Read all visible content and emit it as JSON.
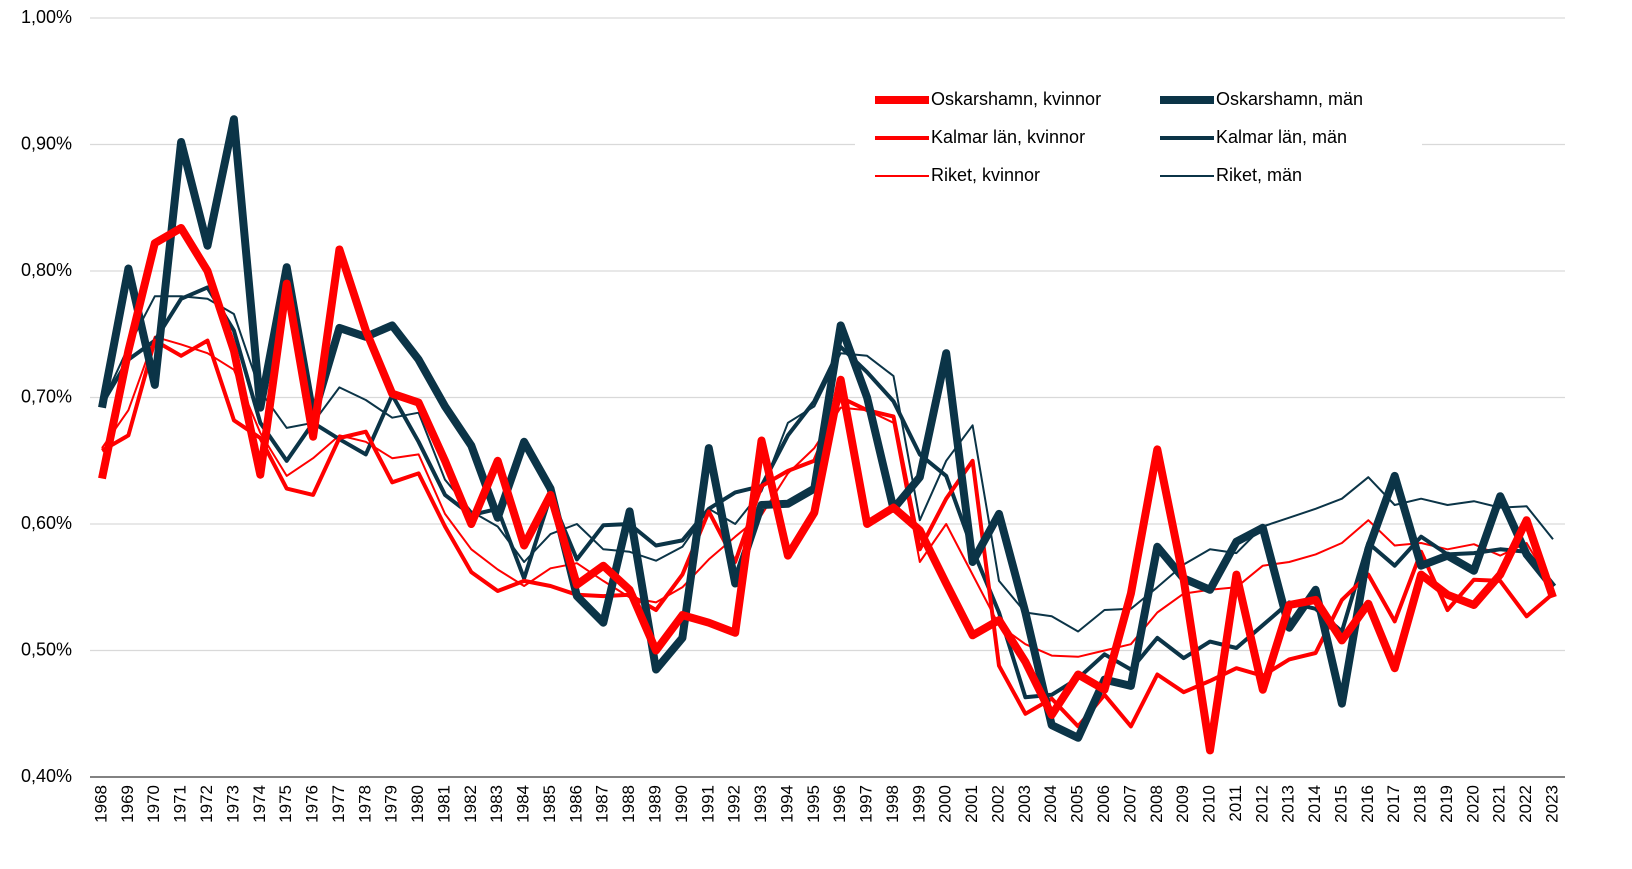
{
  "chart_data": {
    "type": "line",
    "categories": [
      "1968",
      "1969",
      "1970",
      "1971",
      "1972",
      "1973",
      "1974",
      "1975",
      "1976",
      "1977",
      "1978",
      "1979",
      "1980",
      "1981",
      "1982",
      "1983",
      "1984",
      "1985",
      "1986",
      "1987",
      "1988",
      "1989",
      "1990",
      "1991",
      "1992",
      "1993",
      "1994",
      "1995",
      "1996",
      "1997",
      "1998",
      "1999",
      "2000",
      "2001",
      "2002",
      "2003",
      "2004",
      "2005",
      "2006",
      "2007",
      "2008",
      "2009",
      "2010",
      "2011",
      "2012",
      "2013",
      "2014",
      "2015",
      "2016",
      "2017",
      "2018",
      "2019",
      "2020",
      "2021",
      "2022",
      "2023"
    ],
    "ylim": [
      0.4,
      1.0
    ],
    "yticks": [
      {
        "value": 0.4,
        "label": "0,40%"
      },
      {
        "value": 0.5,
        "label": "0,50%"
      },
      {
        "value": 0.6,
        "label": "0,60%"
      },
      {
        "value": 0.7,
        "label": "0,70%"
      },
      {
        "value": 0.8,
        "label": "0,80%"
      },
      {
        "value": 0.9,
        "label": "0,90%"
      },
      {
        "value": 1.0,
        "label": "1,00%"
      }
    ],
    "grid": true,
    "legend": "top-right",
    "series": [
      {
        "name": "Oskarshamn, kvinnor",
        "color": "#ff0000",
        "width": 8,
        "values": [
          0.636,
          0.737,
          0.822,
          0.834,
          0.8,
          0.737,
          0.639,
          0.79,
          0.669,
          0.817,
          0.753,
          0.703,
          0.696,
          0.65,
          0.6,
          0.65,
          0.583,
          0.623,
          0.552,
          0.567,
          0.548,
          0.5,
          0.528,
          0.522,
          0.514,
          0.666,
          0.575,
          0.609,
          0.714,
          0.6,
          0.613,
          0.595,
          0.553,
          0.512,
          0.524,
          0.491,
          0.449,
          0.481,
          0.469,
          0.545,
          0.659,
          0.556,
          0.421,
          0.56,
          0.469,
          0.536,
          0.54,
          0.508,
          0.537,
          0.486,
          0.56,
          0.544,
          0.536,
          0.56,
          0.603,
          0.542
        ]
      },
      {
        "name": "Oskarshamn, män",
        "color": "#0b3447",
        "width": 8,
        "values": [
          0.692,
          0.802,
          0.71,
          0.902,
          0.82,
          0.92,
          0.692,
          0.803,
          0.685,
          0.755,
          0.748,
          0.757,
          0.73,
          0.693,
          0.662,
          0.605,
          0.665,
          0.628,
          0.543,
          0.522,
          0.61,
          0.485,
          0.51,
          0.66,
          0.553,
          0.615,
          0.616,
          0.628,
          0.757,
          0.7,
          0.612,
          0.637,
          0.735,
          0.57,
          0.608,
          0.53,
          0.441,
          0.431,
          0.477,
          0.472,
          0.582,
          0.557,
          0.548,
          0.586,
          0.597,
          0.518,
          0.548,
          0.458,
          0.58,
          0.638,
          0.567,
          0.575,
          0.563,
          0.622,
          0.576,
          0.55
        ]
      },
      {
        "name": "Kalmar län, kvinnor",
        "color": "#ff0000",
        "width": 4,
        "values": [
          0.658,
          0.67,
          0.745,
          0.733,
          0.745,
          0.682,
          0.668,
          0.628,
          0.623,
          0.668,
          0.673,
          0.633,
          0.64,
          0.598,
          0.562,
          0.547,
          0.555,
          0.551,
          0.544,
          0.543,
          0.544,
          0.532,
          0.56,
          0.61,
          0.57,
          0.63,
          0.642,
          0.65,
          0.7,
          0.69,
          0.685,
          0.58,
          0.62,
          0.65,
          0.488,
          0.45,
          0.462,
          0.44,
          0.465,
          0.44,
          0.481,
          0.467,
          0.476,
          0.486,
          0.48,
          0.493,
          0.498,
          0.54,
          0.56,
          0.523,
          0.578,
          0.532,
          0.556,
          0.555,
          0.527,
          0.545
        ]
      },
      {
        "name": "Kalmar län, män",
        "color": "#0b3447",
        "width": 4,
        "values": [
          0.695,
          0.73,
          0.745,
          0.778,
          0.787,
          0.753,
          0.68,
          0.65,
          0.68,
          0.667,
          0.655,
          0.702,
          0.665,
          0.623,
          0.607,
          0.612,
          0.557,
          0.622,
          0.572,
          0.599,
          0.6,
          0.583,
          0.587,
          0.612,
          0.625,
          0.63,
          0.67,
          0.697,
          0.74,
          0.72,
          0.697,
          0.655,
          0.638,
          0.58,
          0.53,
          0.463,
          0.465,
          0.478,
          0.497,
          0.485,
          0.51,
          0.494,
          0.507,
          0.502,
          0.52,
          0.538,
          0.533,
          0.515,
          0.585,
          0.567,
          0.59,
          0.576,
          0.577,
          0.58,
          0.578,
          0.552
        ]
      },
      {
        "name": "Riket, kvinnor",
        "color": "#ff0000",
        "width": 2,
        "values": [
          0.66,
          0.69,
          0.748,
          0.742,
          0.735,
          0.722,
          0.672,
          0.638,
          0.652,
          0.67,
          0.665,
          0.652,
          0.655,
          0.608,
          0.58,
          0.564,
          0.551,
          0.565,
          0.569,
          0.555,
          0.542,
          0.538,
          0.55,
          0.572,
          0.59,
          0.607,
          0.64,
          0.66,
          0.692,
          0.69,
          0.68,
          0.57,
          0.6,
          0.56,
          0.52,
          0.505,
          0.496,
          0.495,
          0.5,
          0.505,
          0.53,
          0.545,
          0.548,
          0.55,
          0.567,
          0.57,
          0.576,
          0.585,
          0.603,
          0.583,
          0.585,
          0.58,
          0.584,
          0.575,
          0.585,
          0.55
        ]
      },
      {
        "name": "Riket, män",
        "color": "#0b3447",
        "width": 2,
        "values": [
          0.695,
          0.74,
          0.78,
          0.78,
          0.778,
          0.766,
          0.705,
          0.676,
          0.68,
          0.708,
          0.698,
          0.684,
          0.688,
          0.635,
          0.61,
          0.598,
          0.57,
          0.592,
          0.6,
          0.58,
          0.578,
          0.571,
          0.582,
          0.612,
          0.6,
          0.626,
          0.68,
          0.693,
          0.735,
          0.733,
          0.717,
          0.603,
          0.65,
          0.678,
          0.555,
          0.53,
          0.527,
          0.515,
          0.532,
          0.533,
          0.55,
          0.568,
          0.58,
          0.577,
          0.598,
          0.605,
          0.612,
          0.62,
          0.637,
          0.615,
          0.62,
          0.615,
          0.618,
          0.613,
          0.614,
          0.588
        ]
      }
    ]
  }
}
